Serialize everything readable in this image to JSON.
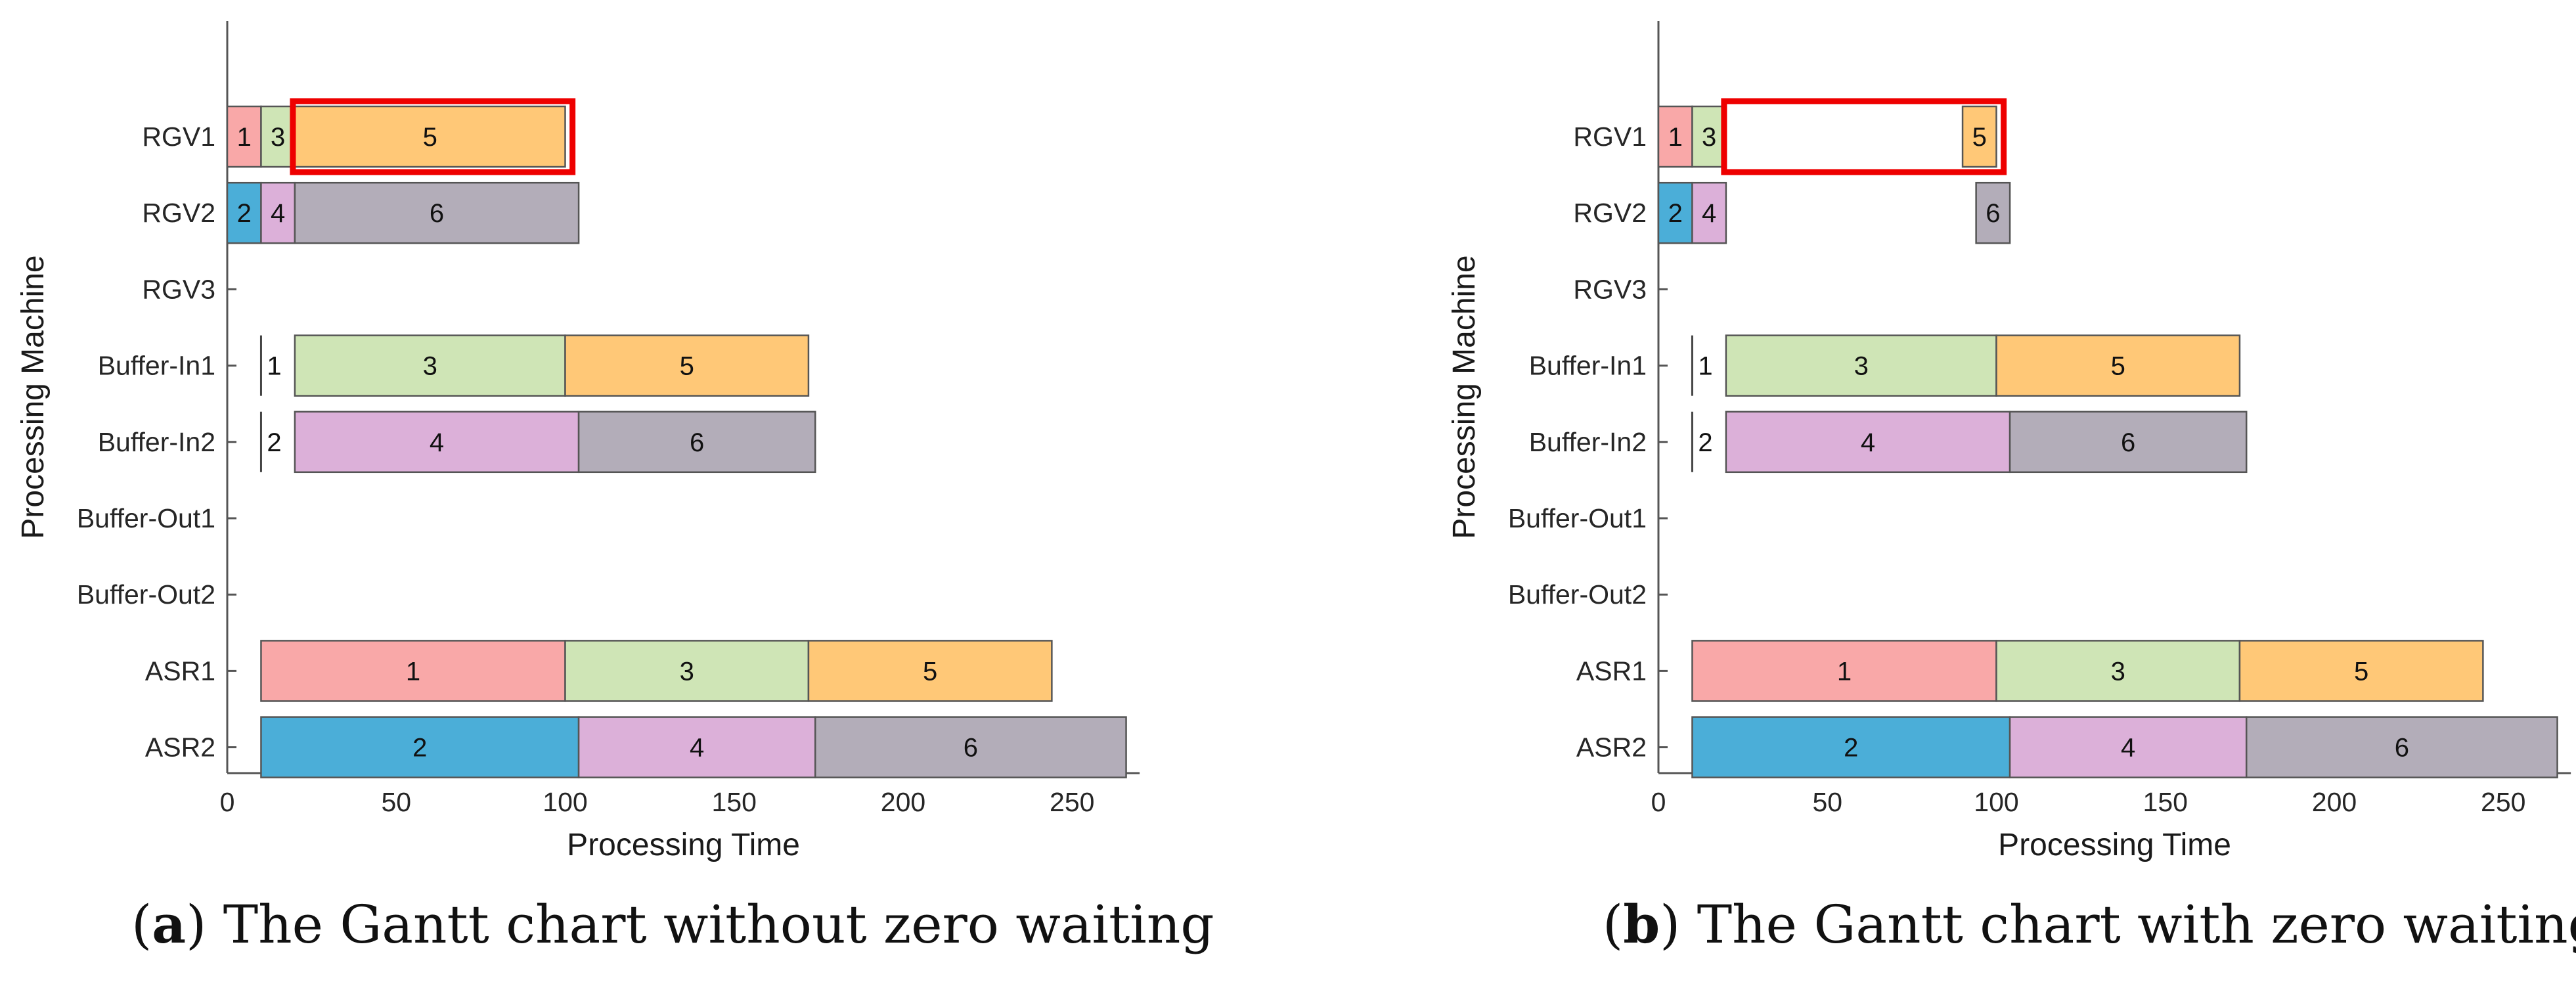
{
  "chart_data": [
    {
      "type": "gantt",
      "title": "",
      "xlabel": "Processing Time",
      "ylabel": "Processing Machine",
      "xlim": [
        0,
        270
      ],
      "xticks": [
        0,
        50,
        100,
        150,
        200,
        250
      ],
      "machines": [
        "RGV1",
        "RGV2",
        "RGV3",
        "Buffer-In1",
        "Buffer-In2",
        "Buffer-Out1",
        "Buffer-Out2",
        "ASR1",
        "ASR2"
      ],
      "tasks": [
        {
          "machine": "RGV1",
          "job": "1",
          "start": 0,
          "end": 10
        },
        {
          "machine": "RGV1",
          "job": "3",
          "start": 10,
          "end": 20
        },
        {
          "machine": "RGV1",
          "job": "5",
          "start": 20,
          "end": 100
        },
        {
          "machine": "RGV2",
          "job": "2",
          "start": 0,
          "end": 10
        },
        {
          "machine": "RGV2",
          "job": "4",
          "start": 10,
          "end": 20
        },
        {
          "machine": "RGV2",
          "job": "6",
          "start": 20,
          "end": 104
        },
        {
          "machine": "Buffer-In1",
          "job": "1",
          "start": 10,
          "end": 10
        },
        {
          "machine": "Buffer-In1",
          "job": "3",
          "start": 20,
          "end": 100
        },
        {
          "machine": "Buffer-In1",
          "job": "5",
          "start": 100,
          "end": 172
        },
        {
          "machine": "Buffer-In2",
          "job": "2",
          "start": 10,
          "end": 10
        },
        {
          "machine": "Buffer-In2",
          "job": "4",
          "start": 20,
          "end": 104
        },
        {
          "machine": "Buffer-In2",
          "job": "6",
          "start": 104,
          "end": 174
        },
        {
          "machine": "ASR1",
          "job": "1",
          "start": 10,
          "end": 100
        },
        {
          "machine": "ASR1",
          "job": "3",
          "start": 100,
          "end": 172
        },
        {
          "machine": "ASR1",
          "job": "5",
          "start": 172,
          "end": 244
        },
        {
          "machine": "ASR2",
          "job": "2",
          "start": 10,
          "end": 104
        },
        {
          "machine": "ASR2",
          "job": "4",
          "start": 104,
          "end": 174
        },
        {
          "machine": "ASR2",
          "job": "6",
          "start": 174,
          "end": 266
        }
      ],
      "highlight": {
        "machine": "RGV1",
        "start": 20,
        "end": 101
      },
      "caption_letter": "a",
      "caption_text": ") The Gantt chart without zero waiting"
    },
    {
      "type": "gantt",
      "title": "",
      "xlabel": "Processing Time",
      "ylabel": "Processing Machine",
      "xlim": [
        0,
        270
      ],
      "xticks": [
        0,
        50,
        100,
        150,
        200,
        250
      ],
      "machines": [
        "RGV1",
        "RGV2",
        "RGV3",
        "Buffer-In1",
        "Buffer-In2",
        "Buffer-Out1",
        "Buffer-Out2",
        "ASR1",
        "ASR2"
      ],
      "tasks": [
        {
          "machine": "RGV1",
          "job": "1",
          "start": 0,
          "end": 10
        },
        {
          "machine": "RGV1",
          "job": "3",
          "start": 10,
          "end": 20
        },
        {
          "machine": "RGV1",
          "job": "5",
          "start": 90,
          "end": 100
        },
        {
          "machine": "RGV2",
          "job": "2",
          "start": 0,
          "end": 10
        },
        {
          "machine": "RGV2",
          "job": "4",
          "start": 10,
          "end": 20
        },
        {
          "machine": "RGV2",
          "job": "6",
          "start": 94,
          "end": 104
        },
        {
          "machine": "Buffer-In1",
          "job": "1",
          "start": 10,
          "end": 10
        },
        {
          "machine": "Buffer-In1",
          "job": "3",
          "start": 20,
          "end": 100
        },
        {
          "machine": "Buffer-In1",
          "job": "5",
          "start": 100,
          "end": 172
        },
        {
          "machine": "Buffer-In2",
          "job": "2",
          "start": 10,
          "end": 10
        },
        {
          "machine": "Buffer-In2",
          "job": "4",
          "start": 20,
          "end": 104
        },
        {
          "machine": "Buffer-In2",
          "job": "6",
          "start": 104,
          "end": 174
        },
        {
          "machine": "ASR1",
          "job": "1",
          "start": 10,
          "end": 100
        },
        {
          "machine": "ASR1",
          "job": "3",
          "start": 100,
          "end": 172
        },
        {
          "machine": "ASR1",
          "job": "5",
          "start": 172,
          "end": 244
        },
        {
          "machine": "ASR2",
          "job": "2",
          "start": 10,
          "end": 104
        },
        {
          "machine": "ASR2",
          "job": "4",
          "start": 104,
          "end": 174
        },
        {
          "machine": "ASR2",
          "job": "6",
          "start": 174,
          "end": 266
        }
      ],
      "highlight": {
        "machine": "RGV1",
        "start": 20,
        "end": 101
      },
      "caption_letter": "b",
      "caption_text": ") The Gantt chart with zero waiting"
    }
  ],
  "job_colors": {
    "1": "#F9A8A8",
    "2": "#4BAED8",
    "3": "#CFE5B6",
    "4": "#DCB0D9",
    "5": "#FFC877",
    "6": "#B3ADB9"
  },
  "highlight_color": "#EE0000"
}
